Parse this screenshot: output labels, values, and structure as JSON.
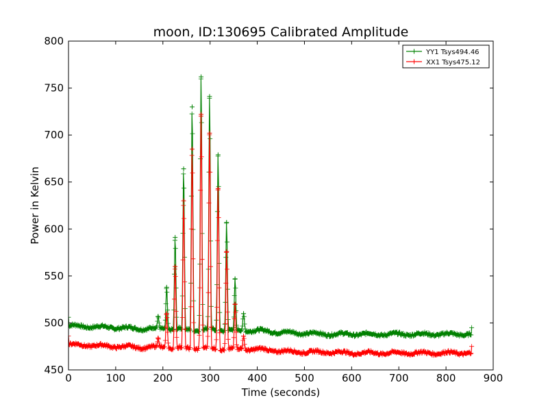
{
  "chart_data": {
    "type": "line",
    "title": "moon, ID:130695 Calibrated Amplitude",
    "xlabel": "Time (seconds)",
    "ylabel": "Power in Kelvin",
    "xlim": [
      0,
      900
    ],
    "ylim": [
      450,
      800
    ],
    "xticks": [
      0,
      100,
      200,
      300,
      400,
      500,
      600,
      700,
      800,
      900
    ],
    "yticks": [
      450,
      500,
      550,
      600,
      650,
      700,
      750,
      800
    ],
    "grid": false,
    "legend_position": "top-right",
    "marker": "plus",
    "series": [
      {
        "name": "YY1 Tsys494.46",
        "color": "#008000",
        "baseline": [
          [
            0,
            497
          ],
          [
            50,
            496
          ],
          [
            100,
            495
          ],
          [
            150,
            494
          ],
          [
            200,
            494
          ],
          [
            250,
            493
          ],
          [
            300,
            493
          ],
          [
            350,
            492
          ],
          [
            400,
            492
          ],
          [
            450,
            490
          ],
          [
            500,
            489
          ],
          [
            550,
            488
          ],
          [
            600,
            488
          ],
          [
            650,
            488
          ],
          [
            700,
            488
          ],
          [
            750,
            488
          ],
          [
            800,
            488
          ],
          [
            855,
            488
          ]
        ],
        "peaks": [
          [
            190,
            507
          ],
          [
            208,
            538
          ],
          [
            226,
            591
          ],
          [
            244,
            664
          ],
          [
            262,
            730
          ],
          [
            281,
            762
          ],
          [
            299,
            741
          ],
          [
            317,
            679
          ],
          [
            335,
            607
          ],
          [
            353,
            547
          ],
          [
            371,
            510
          ]
        ]
      },
      {
        "name": "XX1 Tsys475.12",
        "color": "#ff0000",
        "baseline": [
          [
            0,
            477
          ],
          [
            50,
            476
          ],
          [
            100,
            475
          ],
          [
            150,
            474
          ],
          [
            200,
            474
          ],
          [
            250,
            473
          ],
          [
            300,
            473
          ],
          [
            350,
            472
          ],
          [
            400,
            472
          ],
          [
            450,
            470
          ],
          [
            500,
            469
          ],
          [
            550,
            469
          ],
          [
            600,
            468
          ],
          [
            650,
            468
          ],
          [
            700,
            468
          ],
          [
            750,
            468
          ],
          [
            800,
            468
          ],
          [
            855,
            468
          ]
        ],
        "peaks": [
          [
            190,
            484
          ],
          [
            208,
            510
          ],
          [
            226,
            560
          ],
          [
            244,
            630
          ],
          [
            262,
            685
          ],
          [
            281,
            722
          ],
          [
            299,
            702
          ],
          [
            317,
            643
          ],
          [
            335,
            576
          ],
          [
            353,
            520
          ],
          [
            371,
            486
          ]
        ]
      }
    ]
  }
}
